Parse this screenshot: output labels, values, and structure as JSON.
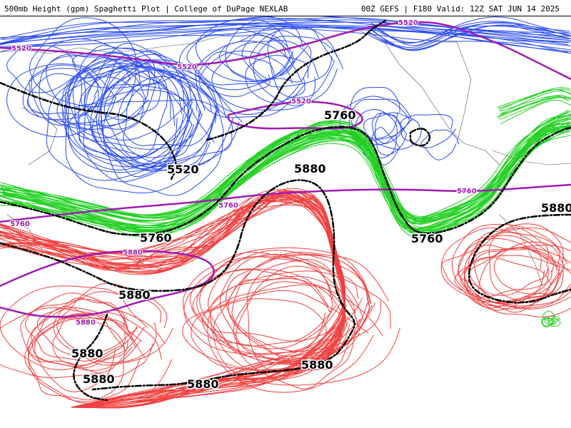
{
  "header": {
    "title": "500mb Height (gpm) Spaghetti Plot | College of DuPage NEXLAB",
    "run_info": "00Z GEFS | F180 Valid: 12Z SAT JUN 14 2025"
  },
  "colors": {
    "c5520": "#2a4cf0",
    "c5760": "#22d022",
    "c5880": "#f04040",
    "mean": "#000000",
    "climo": "#a01cb4",
    "coast": "#444444"
  },
  "labels": {
    "mean": [
      {
        "text": "5520"
      },
      {
        "text": "5760"
      },
      {
        "text": "5880"
      },
      {
        "text": "5760"
      },
      {
        "text": "5760"
      },
      {
        "text": "5880"
      },
      {
        "text": "5880"
      },
      {
        "text": "5880"
      },
      {
        "text": "5880"
      },
      {
        "text": "5880"
      },
      {
        "text": "5880"
      }
    ],
    "climo": [
      {
        "text": "5520"
      },
      {
        "text": "5520"
      },
      {
        "text": "5520"
      },
      {
        "text": "5520"
      },
      {
        "text": "5760"
      },
      {
        "text": "5760"
      },
      {
        "text": "5760"
      },
      {
        "text": "5880"
      },
      {
        "text": "5880"
      }
    ]
  }
}
